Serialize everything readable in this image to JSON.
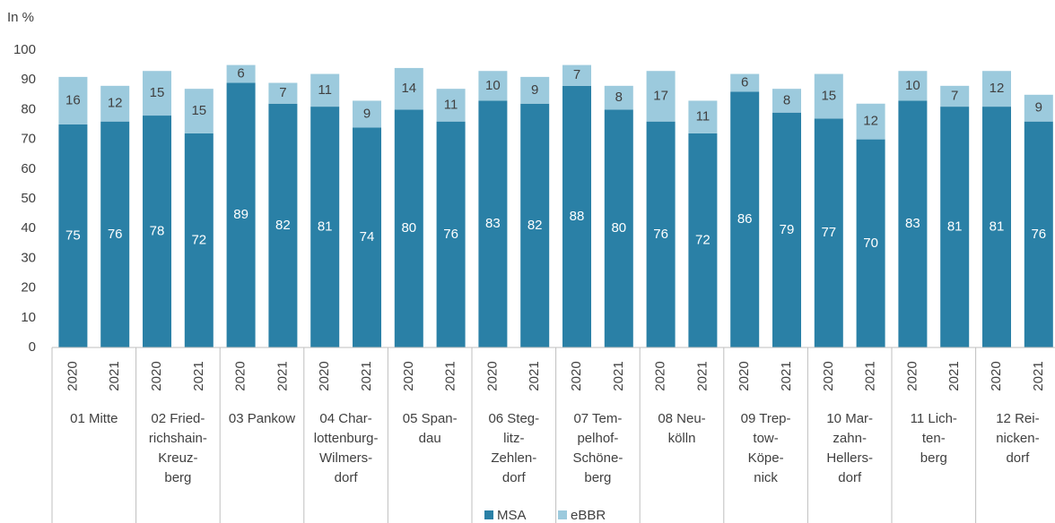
{
  "chart_data": {
    "type": "stacked_bar",
    "y_axis_label": "In %",
    "ylim": [
      0,
      100
    ],
    "yticks": [
      0,
      10,
      20,
      30,
      40,
      50,
      60,
      70,
      80,
      90,
      100
    ],
    "grid": false,
    "legend": "bottom",
    "groups": [
      {
        "name": [
          "01 Mitte"
        ],
        "categories": [
          "2020",
          "2021"
        ]
      },
      {
        "name": [
          "02 Fried-",
          "richshain-",
          "Kreuz-",
          "berg"
        ],
        "categories": [
          "2020",
          "2021"
        ]
      },
      {
        "name": [
          "03 Pankow"
        ],
        "categories": [
          "2020",
          "2021"
        ]
      },
      {
        "name": [
          "04 Char-",
          "lottenburg-",
          "Wilmers-",
          "dorf"
        ],
        "categories": [
          "2020",
          "2021"
        ]
      },
      {
        "name": [
          "05 Span-",
          "dau"
        ],
        "categories": [
          "2020",
          "2021"
        ]
      },
      {
        "name": [
          "06 Steg-",
          "litz-",
          "Zehlen-",
          "dorf"
        ],
        "categories": [
          "2020",
          "2021"
        ]
      },
      {
        "name": [
          "07 Tem-",
          "pelhof-",
          "Schöne-",
          "berg"
        ],
        "categories": [
          "2020",
          "2021"
        ]
      },
      {
        "name": [
          "08 Neu-",
          "kölln"
        ],
        "categories": [
          "2020",
          "2021"
        ]
      },
      {
        "name": [
          "09 Trep-",
          "tow-",
          "Köpe-",
          "nick"
        ],
        "categories": [
          "2020",
          "2021"
        ]
      },
      {
        "name": [
          "10 Mar-",
          "zahn-",
          "Hellers-",
          "dorf"
        ],
        "categories": [
          "2020",
          "2021"
        ]
      },
      {
        "name": [
          "11 Lich-",
          "ten-",
          "berg"
        ],
        "categories": [
          "2020",
          "2021"
        ]
      },
      {
        "name": [
          "12 Rei-",
          "nicken-",
          "dorf"
        ],
        "categories": [
          "2020",
          "2021"
        ]
      }
    ],
    "series": [
      {
        "name": "MSA",
        "color": "#2a80a6",
        "label_color": "#ffffff",
        "values": [
          75,
          76,
          78,
          72,
          89,
          82,
          81,
          74,
          80,
          76,
          83,
          82,
          88,
          80,
          76,
          72,
          86,
          79,
          77,
          70,
          83,
          81,
          81,
          76
        ]
      },
      {
        "name": "eBBR",
        "color": "#9ccadd",
        "label_color": "#404040",
        "values": [
          16,
          12,
          15,
          15,
          6,
          7,
          11,
          9,
          14,
          11,
          10,
          9,
          7,
          8,
          17,
          11,
          6,
          8,
          15,
          12,
          10,
          7,
          12,
          9
        ]
      }
    ]
  }
}
